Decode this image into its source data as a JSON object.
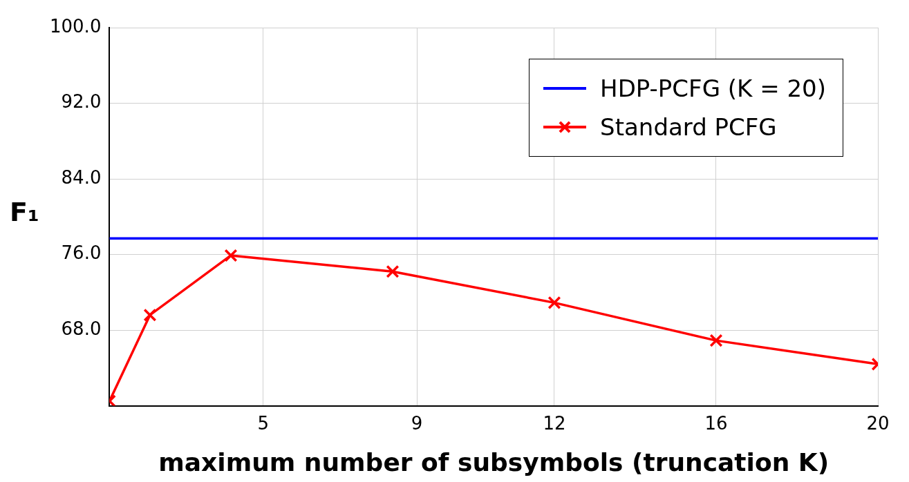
{
  "chart_data": {
    "type": "line",
    "xlabel": "maximum number of subsymbols (truncation K)",
    "ylabel": "F₁",
    "xlim": [
      1,
      20
    ],
    "xticks": [
      {
        "value": 4.8,
        "label": "5"
      },
      {
        "value": 8.6,
        "label": "9"
      },
      12,
      16,
      20
    ],
    "ylim": [
      60,
      100
    ],
    "yticks": [
      {
        "value": 68,
        "label": "68.0"
      },
      {
        "value": 76,
        "label": "76.0"
      },
      {
        "value": 84,
        "label": "84.0"
      },
      {
        "value": 92,
        "label": "92.0"
      },
      {
        "value": 100,
        "label": "100.0"
      }
    ],
    "grid": true,
    "legend": "top right",
    "line_style": "solid",
    "series": [
      {
        "name": "HDP-PCFG (K = 20)",
        "color": "#0000ff",
        "x": [
          1,
          20
        ],
        "values": [
          77.7,
          77.7
        ],
        "marker": "none"
      },
      {
        "name": "Standard PCFG",
        "color": "#ff0000",
        "x": [
          1,
          2,
          4,
          8,
          12,
          16,
          20
        ],
        "values": [
          60.5,
          69.6,
          75.9,
          74.2,
          70.9,
          66.9,
          64.4
        ],
        "marker": "cross"
      }
    ]
  }
}
